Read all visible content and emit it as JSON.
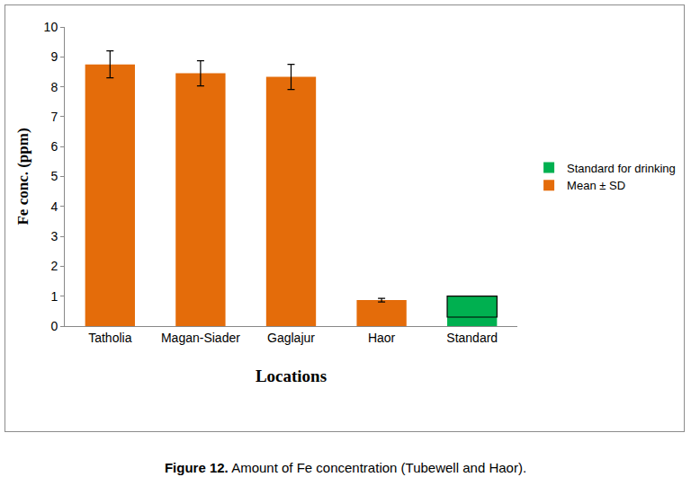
{
  "chart_data": {
    "type": "bar",
    "categories": [
      "Tatholia",
      "Magan-Siader",
      "Gaglajur",
      "Haor",
      "Standard"
    ],
    "x_label": "Locations",
    "y_label": "Fe conc. (ppm)",
    "caption_label": "Figure 12.",
    "caption": "Amount of Fe concentration (Tubewell and Haor).",
    "series": [
      {
        "name": "Standard for drinking",
        "color": "#00b050",
        "values": [
          null,
          null,
          null,
          null,
          1.0
        ],
        "low": [
          null,
          null,
          null,
          null,
          0.3
        ]
      },
      {
        "name": "Mean ± SD",
        "color": "#e46c0a",
        "values": [
          8.75,
          8.45,
          8.33,
          0.87,
          null
        ],
        "errors": [
          0.45,
          0.42,
          0.42,
          0.06,
          null
        ]
      }
    ],
    "ylim": [
      0,
      10
    ],
    "yticks": [
      0,
      1,
      2,
      3,
      4,
      5,
      6,
      7,
      8,
      9,
      10
    ],
    "grid": false,
    "legend": "right"
  }
}
